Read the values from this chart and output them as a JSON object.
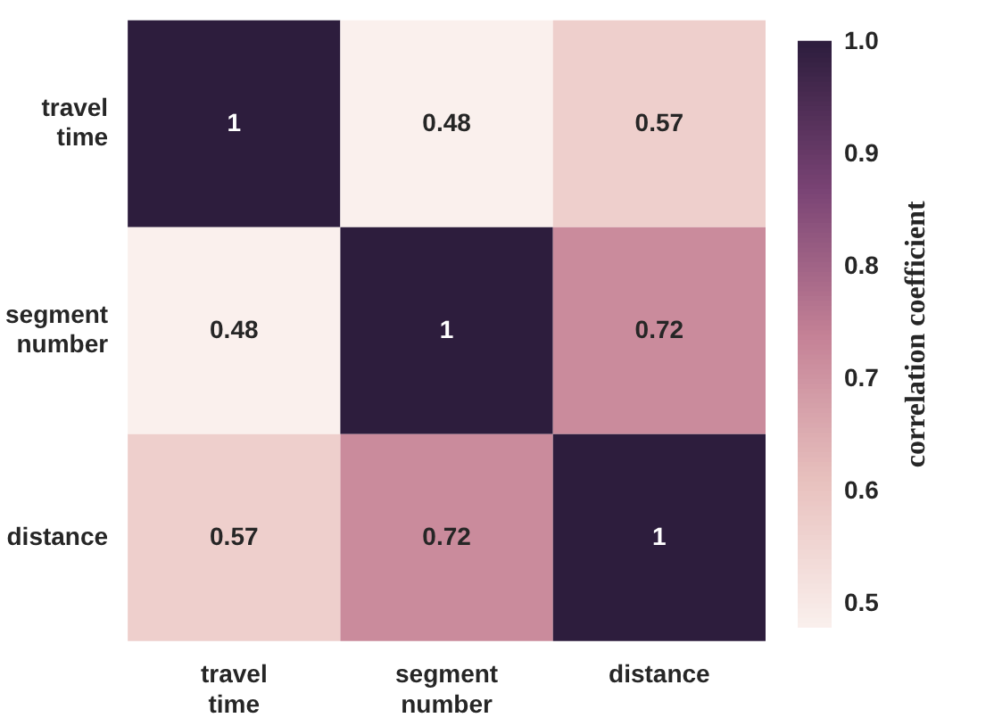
{
  "chart_data": {
    "type": "heatmap",
    "categories": [
      "travel time",
      "segment number",
      "distance"
    ],
    "y_categories": [
      "travel time",
      "segment number",
      "distance"
    ],
    "cells": [
      [
        1,
        0.48,
        0.57
      ],
      [
        0.48,
        1,
        0.72
      ],
      [
        0.57,
        0.72,
        1
      ]
    ],
    "data_labels": true,
    "clabel": "correlation coefficient",
    "clim": [
      0.48,
      1
    ],
    "cticks": [
      0.5,
      0.6,
      0.7,
      0.8,
      0.9,
      {
        "value": 1,
        "label": "1.0"
      }
    ]
  }
}
